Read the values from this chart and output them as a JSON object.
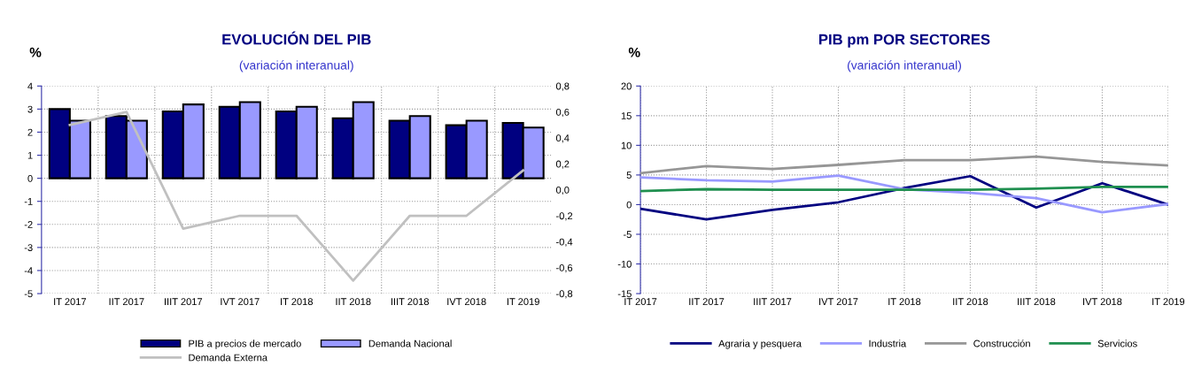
{
  "chart_data": [
    {
      "type": "bar",
      "title": "EVOLUCIÓN DEL PIB",
      "subtitle": "(variación interanual)",
      "ylabel": "%",
      "categories": [
        "IT 2017",
        "IIT 2017",
        "IIIT 2017",
        "IVT 2017",
        "IT 2018",
        "IIT 2018",
        "IIIT 2018",
        "IVT 2018",
        "IT 2019"
      ],
      "series": [
        {
          "name": "PIB a precios de mercado",
          "color": "#000080",
          "values": [
            3.0,
            2.7,
            2.9,
            3.1,
            2.9,
            2.6,
            2.5,
            2.3,
            2.4
          ]
        },
        {
          "name": "Demanda Nacional",
          "color": "#9999ff",
          "values": [
            2.5,
            2.5,
            3.2,
            3.3,
            3.1,
            3.3,
            2.7,
            2.5,
            2.2
          ]
        },
        {
          "name": "Demanda Externa",
          "type": "line",
          "axis": "y2",
          "color": "#c0c0c0",
          "values": [
            0.5,
            0.6,
            -0.3,
            -0.2,
            -0.2,
            -0.7,
            -0.2,
            -0.2,
            0.15
          ]
        }
      ],
      "ylim": [
        -5,
        4
      ],
      "yticks": [
        -5,
        -4,
        -3,
        -2,
        -1,
        0,
        1,
        2,
        3,
        4
      ],
      "y2lim": [
        -0.8,
        0.8
      ],
      "y2ticks": [
        {
          "value": -0.8,
          "label": "-0,8"
        },
        {
          "value": -0.6,
          "label": "-0,6"
        },
        {
          "value": -0.4,
          "label": "-0,4"
        },
        {
          "value": -0.2,
          "label": "-0,2"
        },
        {
          "value": 0.0,
          "label": "0,0"
        },
        {
          "value": 0.2,
          "label": "0,2"
        },
        {
          "value": 0.4,
          "label": "0,4"
        },
        {
          "value": 0.6,
          "label": "0,6"
        },
        {
          "value": 0.8,
          "label": "0,8"
        }
      ],
      "grid": true,
      "legend": "bottom"
    },
    {
      "type": "line",
      "title": "PIB pm POR SECTORES",
      "subtitle": "(variación interanual)",
      "ylabel": "%",
      "categories": [
        "IT 2017",
        "IIT 2017",
        "IIIT 2017",
        "IVT 2017",
        "IT 2018",
        "IIT 2018",
        "IIIT 2018",
        "IVT 2018",
        "IT 2019"
      ],
      "series": [
        {
          "name": "Agraria y pesquera",
          "color": "#000080",
          "values": [
            -0.7,
            -2.5,
            -0.9,
            0.4,
            2.8,
            4.8,
            -0.5,
            3.6,
            0.0
          ]
        },
        {
          "name": "Industria",
          "color": "#9999ff",
          "values": [
            4.6,
            4.1,
            3.9,
            4.9,
            2.6,
            2.0,
            1.1,
            -1.3,
            0.1
          ]
        },
        {
          "name": "Construcción",
          "color": "#969696",
          "values": [
            5.3,
            6.5,
            6.0,
            6.7,
            7.5,
            7.5,
            8.1,
            7.2,
            6.6
          ]
        },
        {
          "name": "Servicios",
          "color": "#1f8f4f",
          "values": [
            2.3,
            2.6,
            2.5,
            2.5,
            2.5,
            2.5,
            2.7,
            3.0,
            3.0
          ]
        }
      ],
      "ylim": [
        -15,
        20
      ],
      "yticks": [
        -15,
        -10,
        -5,
        0,
        5,
        10,
        15,
        20
      ],
      "grid": true,
      "legend": "bottom"
    }
  ]
}
